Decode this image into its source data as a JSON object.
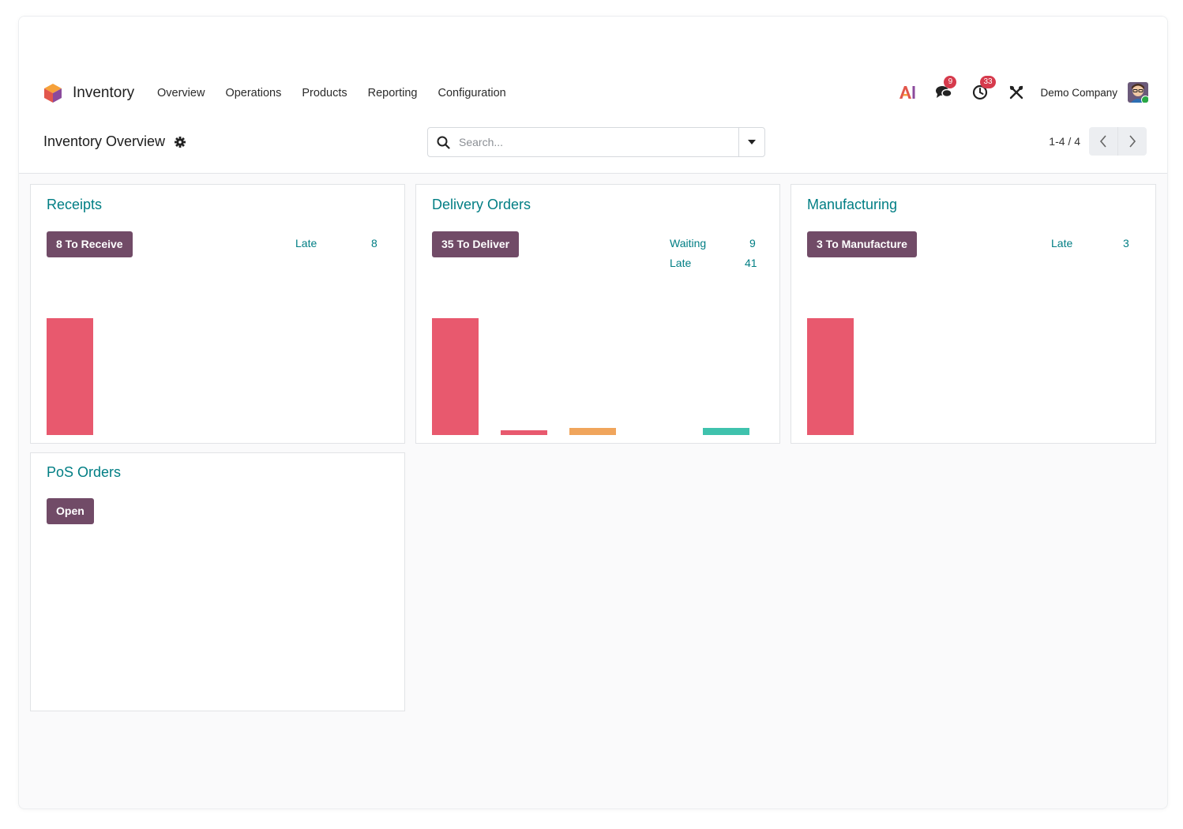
{
  "app": {
    "name": "Inventory"
  },
  "menu": [
    "Overview",
    "Operations",
    "Products",
    "Reporting",
    "Configuration"
  ],
  "systray": {
    "messages_count": "9",
    "activities_count": "33",
    "company": "Demo Company"
  },
  "control": {
    "title": "Inventory Overview",
    "search_placeholder": "Search...",
    "pager": "1-4 / 4"
  },
  "colors": {
    "accent": "#017e84",
    "primary": "#714b67",
    "bar_late": "#e8596e",
    "bar_future": "#f0a55c",
    "bar_ontime": "#3fc2ad"
  },
  "cards": [
    {
      "title": "Receipts",
      "button": "8 To Receive",
      "stats": [
        {
          "label": "Late",
          "value": "8"
        }
      ]
    },
    {
      "title": "Delivery Orders",
      "button": "35 To Deliver",
      "stats": [
        {
          "label": "Waiting",
          "value": "9"
        },
        {
          "label": "Late",
          "value": "41"
        }
      ]
    },
    {
      "title": "Manufacturing",
      "button": "3 To Manufacture",
      "stats": [
        {
          "label": "Late",
          "value": "3"
        }
      ]
    },
    {
      "title": "PoS Orders",
      "button": "Open",
      "stats": []
    }
  ],
  "chart_data": [
    {
      "type": "bar",
      "card": "Receipts",
      "series": [
        {
          "values": [
            1.0,
            0,
            0,
            0,
            0,
            0
          ]
        }
      ],
      "colors": [
        "#e8596e"
      ]
    },
    {
      "type": "bar",
      "card": "Delivery Orders",
      "series": [
        {
          "values": [
            1.0,
            0.04,
            0.06,
            0,
            0.06
          ]
        }
      ],
      "colors": [
        "#e8596e",
        "#e8596e",
        "#f0a55c",
        "#f0a55c",
        "#3fc2ad"
      ]
    },
    {
      "type": "bar",
      "card": "Manufacturing",
      "series": [
        {
          "values": [
            1.0,
            0,
            0,
            0,
            0,
            0
          ]
        }
      ],
      "colors": [
        "#e8596e"
      ]
    }
  ]
}
